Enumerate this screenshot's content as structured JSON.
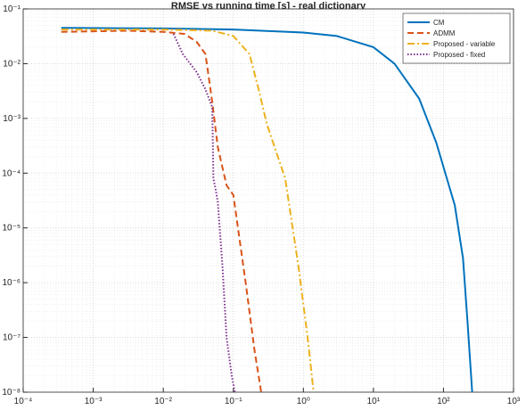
{
  "chart_data": {
    "type": "line",
    "title": "RMSE vs running time [s] - real dictionary",
    "xscale": "log",
    "yscale": "log",
    "grid": true,
    "minor_grid": true,
    "legend": "upper right",
    "xlim": [
      0.0001,
      1000
    ],
    "ylim": [
      1e-08,
      0.1
    ],
    "xticks": [
      {
        "value": 0.0001,
        "label": "10⁻⁴"
      },
      {
        "value": 0.001,
        "label": "10⁻³"
      },
      {
        "value": 0.01,
        "label": "10⁻²"
      },
      {
        "value": 0.1,
        "label": "10⁻¹"
      },
      {
        "value": 1,
        "label": "10⁰"
      },
      {
        "value": 10,
        "label": "10¹"
      },
      {
        "value": 100,
        "label": "10²"
      },
      {
        "value": 1000,
        "label": "10³"
      }
    ],
    "yticks": [
      {
        "value": 1e-08,
        "label": "10⁻⁸"
      },
      {
        "value": 1e-07,
        "label": "10⁻⁷"
      },
      {
        "value": 1e-06,
        "label": "10⁻⁶"
      },
      {
        "value": 1e-05,
        "label": "10⁻⁵"
      },
      {
        "value": 0.0001,
        "label": "10⁻⁴"
      },
      {
        "value": 0.001,
        "label": "10⁻³"
      },
      {
        "value": 0.01,
        "label": "10⁻²"
      },
      {
        "value": 0.1,
        "label": "10⁻¹"
      }
    ],
    "series": [
      {
        "name": "CM",
        "color": "#0072bd",
        "dash": "solid",
        "x": [
          0.00035,
          0.01,
          0.1,
          1,
          3,
          10,
          20,
          45,
          79,
          145,
          190,
          220,
          257
        ],
        "values": [
          0.045,
          0.044,
          0.042,
          0.037,
          0.032,
          0.02,
          0.01,
          0.0023,
          0.00036,
          2.6e-05,
          2.8e-06,
          2e-07,
          1e-08
        ]
      },
      {
        "name": "ADMM",
        "color": "#d95319",
        "dash": "dash",
        "x": [
          0.00035,
          0.003,
          0.01,
          0.02,
          0.03,
          0.04,
          0.05,
          0.06,
          0.08,
          0.1,
          0.15,
          0.2,
          0.25
        ],
        "values": [
          0.038,
          0.04,
          0.038,
          0.035,
          0.025,
          0.015,
          0.002,
          0.0003,
          6e-05,
          4e-05,
          1e-06,
          6e-08,
          1e-08
        ]
      },
      {
        "name": "Proposed - variable",
        "color": "#edb120",
        "dash": "dashdot",
        "x": [
          0.00035,
          0.01,
          0.05,
          0.1,
          0.17,
          0.23,
          0.3,
          0.55,
          0.85,
          1.15,
          1.4
        ],
        "values": [
          0.042,
          0.042,
          0.04,
          0.032,
          0.015,
          0.0034,
          0.0008,
          8e-05,
          2e-06,
          1e-07,
          1e-08
        ]
      },
      {
        "name": "Proposed - fixed",
        "color": "#7e2f8e",
        "dash": "dot",
        "x": [
          0.014,
          0.019,
          0.03,
          0.04,
          0.05,
          0.052,
          0.056,
          0.06,
          0.07,
          0.08,
          0.095,
          0.105
        ],
        "values": [
          0.035,
          0.015,
          0.007,
          0.0034,
          0.0016,
          8e-05,
          5e-05,
          3e-05,
          2e-06,
          1e-07,
          2e-08,
          1e-08
        ]
      }
    ]
  }
}
